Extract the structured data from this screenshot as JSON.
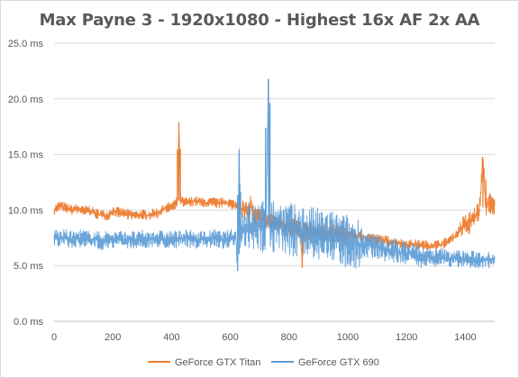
{
  "chart_data": {
    "type": "line",
    "title": "Max Payne 3 - 1920x1080 - Highest 16x AF 2x AA",
    "xlabel": "",
    "ylabel": "",
    "xlim": [
      0,
      1500
    ],
    "ylim": [
      0,
      25
    ],
    "x_ticks": [
      0,
      200,
      400,
      600,
      800,
      1000,
      1200,
      1400
    ],
    "x_tick_labels": [
      "0",
      "200",
      "400",
      "600",
      "800",
      "1000",
      "1200",
      "1400"
    ],
    "y_ticks": [
      0,
      5,
      10,
      15,
      20,
      25
    ],
    "y_tick_labels": [
      "0.0 ms",
      "5.0 ms",
      "10.0 ms",
      "15.0 ms",
      "20.0 ms",
      "25.0 ms"
    ],
    "grid": "horizontal",
    "legend_position": "bottom",
    "series": [
      {
        "name": "GeForce GTX Titan",
        "color": "#ed7d31",
        "points": [
          [
            0,
            10.0
          ],
          [
            20,
            10.4
          ],
          [
            40,
            10.2
          ],
          [
            60,
            10.0
          ],
          [
            80,
            10.1
          ],
          [
            100,
            9.9
          ],
          [
            120,
            10.0
          ],
          [
            140,
            9.7
          ],
          [
            160,
            9.6
          ],
          [
            180,
            9.5
          ],
          [
            200,
            9.9
          ],
          [
            220,
            9.8
          ],
          [
            240,
            9.7
          ],
          [
            260,
            9.6
          ],
          [
            280,
            9.5
          ],
          [
            300,
            9.6
          ],
          [
            320,
            9.5
          ],
          [
            340,
            9.7
          ],
          [
            360,
            9.8
          ],
          [
            380,
            10.2
          ],
          [
            400,
            10.3
          ],
          [
            410,
            10.5
          ],
          [
            420,
            10.8
          ],
          [
            425,
            17.9
          ],
          [
            430,
            10.9
          ],
          [
            440,
            10.7
          ],
          [
            460,
            10.7
          ],
          [
            480,
            10.8
          ],
          [
            500,
            10.7
          ],
          [
            520,
            10.6
          ],
          [
            540,
            10.7
          ],
          [
            560,
            10.6
          ],
          [
            580,
            10.7
          ],
          [
            600,
            10.6
          ],
          [
            620,
            10.4
          ],
          [
            640,
            10.1
          ],
          [
            660,
            9.7
          ],
          [
            670,
            10.6
          ],
          [
            680,
            9.5
          ],
          [
            700,
            9.3
          ],
          [
            720,
            9.1
          ],
          [
            740,
            9.0
          ],
          [
            760,
            8.8
          ],
          [
            780,
            8.6
          ],
          [
            800,
            8.5
          ],
          [
            820,
            8.3
          ],
          [
            840,
            8.2
          ],
          [
            845,
            4.8
          ],
          [
            850,
            8.1
          ],
          [
            880,
            8.0
          ],
          [
            920,
            7.9
          ],
          [
            960,
            7.8
          ],
          [
            1000,
            7.8
          ],
          [
            1040,
            7.6
          ],
          [
            1080,
            7.5
          ],
          [
            1120,
            7.3
          ],
          [
            1160,
            7.1
          ],
          [
            1200,
            6.9
          ],
          [
            1240,
            6.9
          ],
          [
            1280,
            6.8
          ],
          [
            1320,
            6.9
          ],
          [
            1340,
            7.2
          ],
          [
            1360,
            7.5
          ],
          [
            1380,
            8.2
          ],
          [
            1400,
            8.6
          ],
          [
            1420,
            9.0
          ],
          [
            1440,
            9.6
          ],
          [
            1450,
            10.3
          ],
          [
            1460,
            14.7
          ],
          [
            1470,
            10.2
          ],
          [
            1480,
            10.8
          ],
          [
            1490,
            10.4
          ],
          [
            1500,
            10.3
          ]
        ]
      },
      {
        "name": "GeForce GTX 690",
        "color": "#5b9bd5",
        "points": [
          [
            0,
            7.6
          ],
          [
            20,
            7.4
          ],
          [
            40,
            7.5
          ],
          [
            60,
            7.3
          ],
          [
            80,
            7.4
          ],
          [
            100,
            7.5
          ],
          [
            120,
            7.3
          ],
          [
            140,
            7.4
          ],
          [
            160,
            7.2
          ],
          [
            180,
            7.4
          ],
          [
            200,
            7.3
          ],
          [
            220,
            7.4
          ],
          [
            240,
            7.3
          ],
          [
            260,
            7.4
          ],
          [
            280,
            7.2
          ],
          [
            300,
            7.4
          ],
          [
            320,
            7.3
          ],
          [
            340,
            7.5
          ],
          [
            360,
            7.4
          ],
          [
            380,
            7.3
          ],
          [
            400,
            7.4
          ],
          [
            420,
            7.3
          ],
          [
            440,
            7.5
          ],
          [
            460,
            7.4
          ],
          [
            480,
            7.3
          ],
          [
            500,
            7.4
          ],
          [
            520,
            7.3
          ],
          [
            540,
            7.5
          ],
          [
            560,
            7.4
          ],
          [
            580,
            7.3
          ],
          [
            600,
            7.5
          ],
          [
            620,
            7.4
          ],
          [
            625,
            4.5
          ],
          [
            630,
            15.3
          ],
          [
            635,
            7.6
          ],
          [
            640,
            8.0
          ],
          [
            660,
            8.5
          ],
          [
            680,
            8.2
          ],
          [
            700,
            8.6
          ],
          [
            720,
            8.4
          ],
          [
            730,
            21.8
          ],
          [
            735,
            8.5
          ],
          [
            760,
            8.7
          ],
          [
            780,
            8.3
          ],
          [
            800,
            8.4
          ],
          [
            820,
            8.1
          ],
          [
            840,
            8.2
          ],
          [
            860,
            8.0
          ],
          [
            880,
            7.9
          ],
          [
            900,
            7.8
          ],
          [
            920,
            7.7
          ],
          [
            940,
            7.6
          ],
          [
            960,
            7.5
          ],
          [
            980,
            7.3
          ],
          [
            1000,
            7.2
          ],
          [
            1020,
            7.1
          ],
          [
            1040,
            7.0
          ],
          [
            1060,
            6.9
          ],
          [
            1080,
            6.8
          ],
          [
            1100,
            6.7
          ],
          [
            1120,
            6.5
          ],
          [
            1140,
            6.4
          ],
          [
            1160,
            6.3
          ],
          [
            1180,
            6.2
          ],
          [
            1200,
            6.1
          ],
          [
            1220,
            6.0
          ],
          [
            1240,
            5.9
          ],
          [
            1260,
            5.8
          ],
          [
            1280,
            5.8
          ],
          [
            1300,
            5.7
          ],
          [
            1320,
            5.8
          ],
          [
            1340,
            5.6
          ],
          [
            1360,
            5.7
          ],
          [
            1380,
            5.6
          ],
          [
            1400,
            5.6
          ],
          [
            1420,
            5.5
          ],
          [
            1440,
            5.6
          ],
          [
            1460,
            5.5
          ],
          [
            1480,
            5.6
          ],
          [
            1500,
            5.5
          ]
        ]
      }
    ]
  }
}
